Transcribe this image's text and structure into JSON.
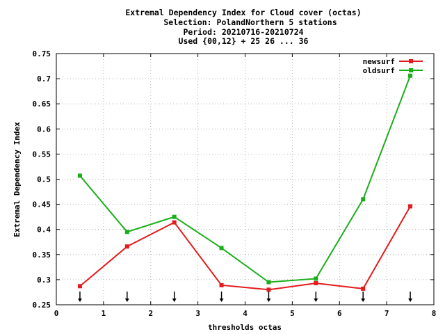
{
  "chart_data": {
    "type": "line",
    "title_lines": [
      "Extremal Dependency Index  for Cloud cover (octas)",
      "Selection: PolandNorthern      5 stations",
      "Period: 20210716-20210724",
      "Used {00,12} + 25 26 ... 36"
    ],
    "xlabel": "thresholds octas",
    "ylabel": "Extremal Dependency Index",
    "xlim": [
      0,
      8
    ],
    "ylim": [
      0.25,
      0.75
    ],
    "x_ticks": [
      0,
      1,
      2,
      3,
      4,
      5,
      6,
      7,
      8
    ],
    "y_ticks": [
      0.25,
      0.3,
      0.35,
      0.4,
      0.45,
      0.5,
      0.55,
      0.6,
      0.65,
      0.7,
      0.75
    ],
    "x_tick_labels": [
      "0",
      "1",
      "2",
      "3",
      "4",
      "5",
      "6",
      "7",
      "8"
    ],
    "y_tick_labels": [
      "0.25",
      "0.3",
      "0.35",
      "0.4",
      "0.45",
      "0.5",
      "0.55",
      "0.6",
      "0.65",
      "0.7",
      "0.75"
    ],
    "grid": true,
    "legend_position": "top-right",
    "x": [
      0.5,
      1.5,
      2.5,
      3.5,
      4.5,
      5.5,
      6.5,
      7.5
    ],
    "series": [
      {
        "name": "newsurf",
        "color": "#e41a1c",
        "values": [
          0.287,
          0.366,
          0.414,
          0.289,
          0.28,
          0.293,
          0.282,
          0.446
        ]
      },
      {
        "name": "oldsurf",
        "color": "#1aaf1a",
        "values": [
          0.507,
          0.395,
          0.425,
          0.363,
          0.295,
          0.302,
          0.46,
          0.706
        ]
      }
    ],
    "arrow_markers_x": [
      0.5,
      1.5,
      2.5,
      3.5,
      4.5,
      5.5,
      6.5,
      7.5
    ]
  }
}
